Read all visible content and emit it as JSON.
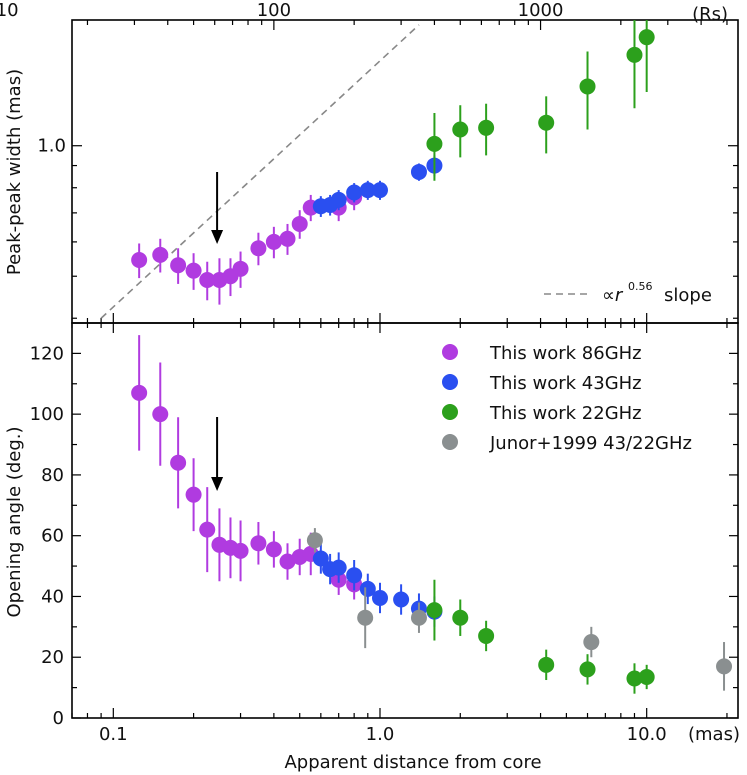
{
  "chart_data": [
    {
      "type": "scatter",
      "panel": "top",
      "ylabel": "Peak-peak width (mas)",
      "top_axis": {
        "unit": "(Rs)",
        "ticks": [
          {
            "value": 10,
            "label": "10"
          },
          {
            "value": 100,
            "label": "100"
          },
          {
            "value": 1000,
            "label": "1000"
          }
        ]
      },
      "y_scale": "log",
      "y_ticks": [
        {
          "value": 1.0,
          "label": "1.0"
        }
      ],
      "slope_label": {
        "prefix": "∝r",
        "exponent": "0.56",
        "suffix": "slope"
      },
      "series": [
        {
          "key": "s86",
          "color": "#b03be0",
          "points": [
            [
              0.125,
              0.545,
              0.05
            ],
            [
              0.15,
              0.56,
              0.05
            ],
            [
              0.175,
              0.53,
              0.05
            ],
            [
              0.2,
              0.515,
              0.05
            ],
            [
              0.225,
              0.49,
              0.05
            ],
            [
              0.25,
              0.49,
              0.06
            ],
            [
              0.275,
              0.5,
              0.05
            ],
            [
              0.3,
              0.52,
              0.05
            ],
            [
              0.35,
              0.58,
              0.05
            ],
            [
              0.4,
              0.6,
              0.05
            ],
            [
              0.45,
              0.61,
              0.05
            ],
            [
              0.5,
              0.66,
              0.05
            ],
            [
              0.55,
              0.72,
              0.05
            ],
            [
              0.7,
              0.72,
              0.05
            ],
            [
              0.8,
              0.76,
              0.05
            ]
          ]
        },
        {
          "key": "s43",
          "color": "#2a4ff0",
          "points": [
            [
              0.6,
              0.725,
              0.04
            ],
            [
              0.65,
              0.73,
              0.04
            ],
            [
              0.7,
              0.75,
              0.04
            ],
            [
              0.8,
              0.78,
              0.04
            ],
            [
              0.9,
              0.79,
              0.04
            ],
            [
              1.0,
              0.79,
              0.04
            ],
            [
              1.4,
              0.87,
              0.04
            ],
            [
              1.6,
              0.9,
              0.05
            ]
          ]
        },
        {
          "key": "s22",
          "color": "#2ca01c",
          "points": [
            [
              1.6,
              1.01,
              0.18
            ],
            [
              2.0,
              1.09,
              0.15
            ],
            [
              2.5,
              1.1,
              0.15
            ],
            [
              4.2,
              1.13,
              0.17
            ],
            [
              6.0,
              1.37,
              0.28
            ],
            [
              9.0,
              1.62,
              0.4
            ],
            [
              10.0,
              1.78,
              0.45
            ]
          ]
        }
      ],
      "fit_line": {
        "x": [
          0.09,
          1.4
        ],
        "y": [
          0.4,
          1.9
        ]
      }
    },
    {
      "type": "scatter",
      "panel": "bottom",
      "xlabel": "Apparent distance from core",
      "ylabel": "Opening angle (deg.)",
      "x_unit": "(mas)",
      "x_scale": "log",
      "x_ticks": [
        {
          "value": 0.1,
          "label": "0.1"
        },
        {
          "value": 1.0,
          "label": "1.0"
        },
        {
          "value": 10.0,
          "label": "10.0"
        }
      ],
      "ylim": [
        0,
        130
      ],
      "y_ticks": [
        {
          "value": 0,
          "label": "0"
        },
        {
          "value": 20,
          "label": "20"
        },
        {
          "value": 40,
          "label": "40"
        },
        {
          "value": 60,
          "label": "60"
        },
        {
          "value": 80,
          "label": "80"
        },
        {
          "value": 100,
          "label": "100"
        },
        {
          "value": 120,
          "label": "120"
        }
      ],
      "legend": [
        {
          "key": "s86",
          "label": "This work 86GHz",
          "color": "#b03be0"
        },
        {
          "key": "s43",
          "label": "This work 43GHz",
          "color": "#2a4ff0"
        },
        {
          "key": "s22",
          "label": "This work 22GHz",
          "color": "#2ca01c"
        },
        {
          "key": "sj",
          "label": "Junor+1999 43/22GHz",
          "color": "#8a8f90"
        }
      ],
      "series": [
        {
          "key": "s86",
          "color": "#b03be0",
          "points": [
            [
              0.125,
              107,
              19
            ],
            [
              0.15,
              100,
              17
            ],
            [
              0.175,
              84,
              15
            ],
            [
              0.2,
              73.5,
              12
            ],
            [
              0.225,
              62,
              14
            ],
            [
              0.25,
              57,
              12
            ],
            [
              0.275,
              56,
              10
            ],
            [
              0.3,
              55,
              10
            ],
            [
              0.35,
              57.5,
              7
            ],
            [
              0.4,
              55.5,
              6
            ],
            [
              0.45,
              51.5,
              6
            ],
            [
              0.5,
              53,
              6
            ],
            [
              0.55,
              54,
              7
            ],
            [
              0.7,
              45.5,
              5
            ],
            [
              0.8,
              44,
              5
            ]
          ]
        },
        {
          "key": "s43",
          "color": "#2a4ff0",
          "points": [
            [
              0.6,
              52.5,
              5
            ],
            [
              0.65,
              49,
              5
            ],
            [
              0.7,
              49.5,
              5
            ],
            [
              0.8,
              47,
              5
            ],
            [
              0.9,
              42.5,
              5
            ],
            [
              1.0,
              39.5,
              5
            ],
            [
              1.2,
              39,
              5
            ],
            [
              1.4,
              36,
              5
            ],
            [
              1.6,
              35,
              5
            ]
          ]
        },
        {
          "key": "s22",
          "color": "#2ca01c",
          "points": [
            [
              1.6,
              35.5,
              10
            ],
            [
              2.0,
              33,
              6
            ],
            [
              2.5,
              27,
              5
            ],
            [
              4.2,
              17.5,
              5
            ],
            [
              6.0,
              16,
              5
            ],
            [
              9.0,
              13,
              5
            ],
            [
              10.0,
              13.5,
              4
            ]
          ]
        },
        {
          "key": "sj",
          "color": "#8a8f90",
          "points": [
            [
              0.57,
              58.5,
              4
            ],
            [
              0.88,
              33,
              10
            ],
            [
              1.4,
              33,
              5
            ],
            [
              6.2,
              25,
              5
            ],
            [
              19.5,
              17,
              8
            ]
          ]
        }
      ]
    }
  ],
  "arrow_x": 0.245
}
